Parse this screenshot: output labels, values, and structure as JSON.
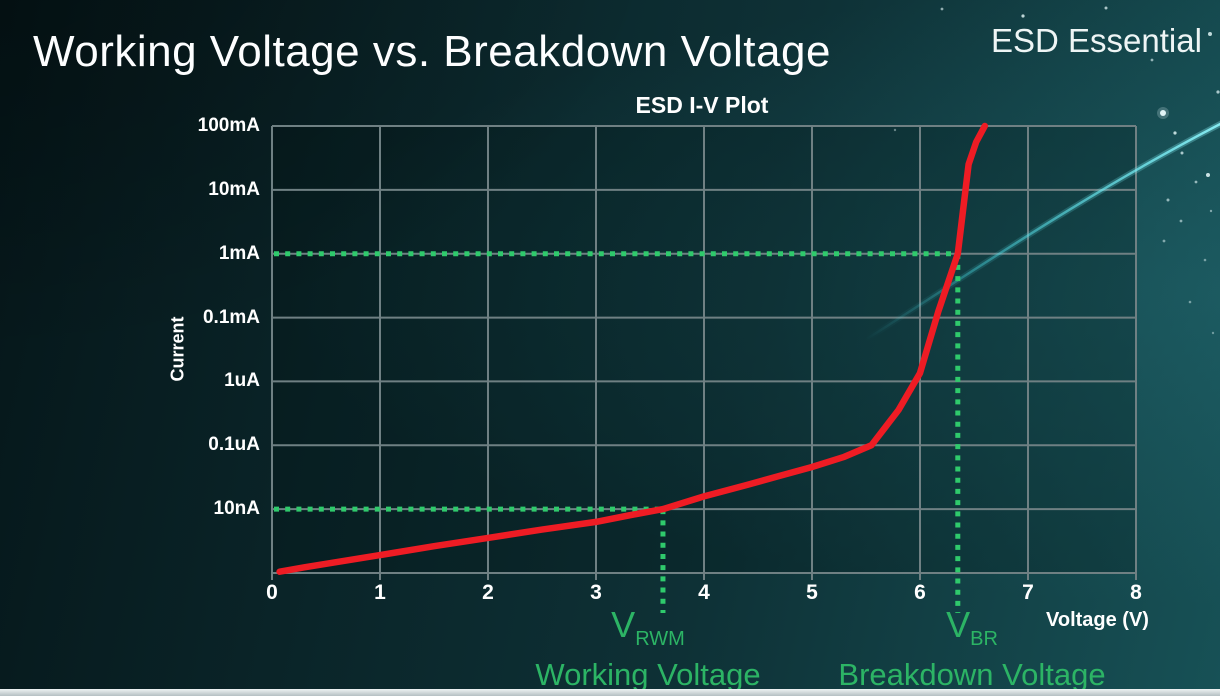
{
  "slide": {
    "title": "Working Voltage vs. Breakdown Voltage",
    "brand": "ESD Essential"
  },
  "chart_data": {
    "type": "line",
    "title": "ESD I-V Plot",
    "xlabel": "Voltage (V)",
    "ylabel": "Current",
    "x_tick_labels": [
      "0",
      "1",
      "2",
      "3",
      "4",
      "5",
      "6",
      "7",
      "8"
    ],
    "y_tick_labels": [
      "100mA",
      "10mA",
      "1mA",
      "0.1mA",
      "1uA",
      "0.1uA",
      "10nA"
    ],
    "y_axis_note": "log-style current axis; one label per horizontal gridline, listed top to bottom; level units below are gridline divisions above the bottom axis (0 = bottom axis, 1 = 10nA, 5 = 1mA, 7 = 100mA)",
    "xlim": [
      0,
      8
    ],
    "grid": true,
    "series": [
      {
        "name": "ESD diode I-V curve",
        "color": "#ee1c24",
        "points": [
          [
            0.07,
            0.02
          ],
          [
            0.3,
            0.09
          ],
          [
            0.6,
            0.17
          ],
          [
            1.0,
            0.28
          ],
          [
            1.5,
            0.42
          ],
          [
            2.0,
            0.55
          ],
          [
            2.5,
            0.68
          ],
          [
            3.0,
            0.8
          ],
          [
            3.3,
            0.9
          ],
          [
            3.62,
            1.0
          ],
          [
            4.0,
            1.2
          ],
          [
            4.4,
            1.38
          ],
          [
            4.7,
            1.52
          ],
          [
            5.0,
            1.66
          ],
          [
            5.3,
            1.82
          ],
          [
            5.55,
            2.0
          ],
          [
            5.8,
            2.55
          ],
          [
            6.0,
            3.13
          ],
          [
            6.17,
            4.1
          ],
          [
            6.35,
            5.0
          ],
          [
            6.45,
            6.4
          ],
          [
            6.52,
            6.75
          ],
          [
            6.6,
            7.0
          ]
        ]
      }
    ],
    "markers": [
      {
        "symbol": "V",
        "sub": "RWM",
        "caption": "Working Voltage",
        "voltage": 3.62,
        "current": "10nA",
        "level": 1
      },
      {
        "symbol": "V",
        "sub": "BR",
        "caption": "Breakdown Voltage",
        "voltage": 6.35,
        "current": "1mA",
        "level": 5
      }
    ]
  },
  "colors": {
    "background_left": "#071b1e",
    "background_right": "#175156",
    "curve_red": "#ee1c24",
    "marker_dotted_green": "#2fca6c",
    "annotation_text_green": "#2cb465",
    "grid_gray": "#6f8083",
    "text_white": "#ffffff",
    "streak_cyan": "#4ae2ec",
    "bottom_bar_gray": "#c5cdcf"
  }
}
